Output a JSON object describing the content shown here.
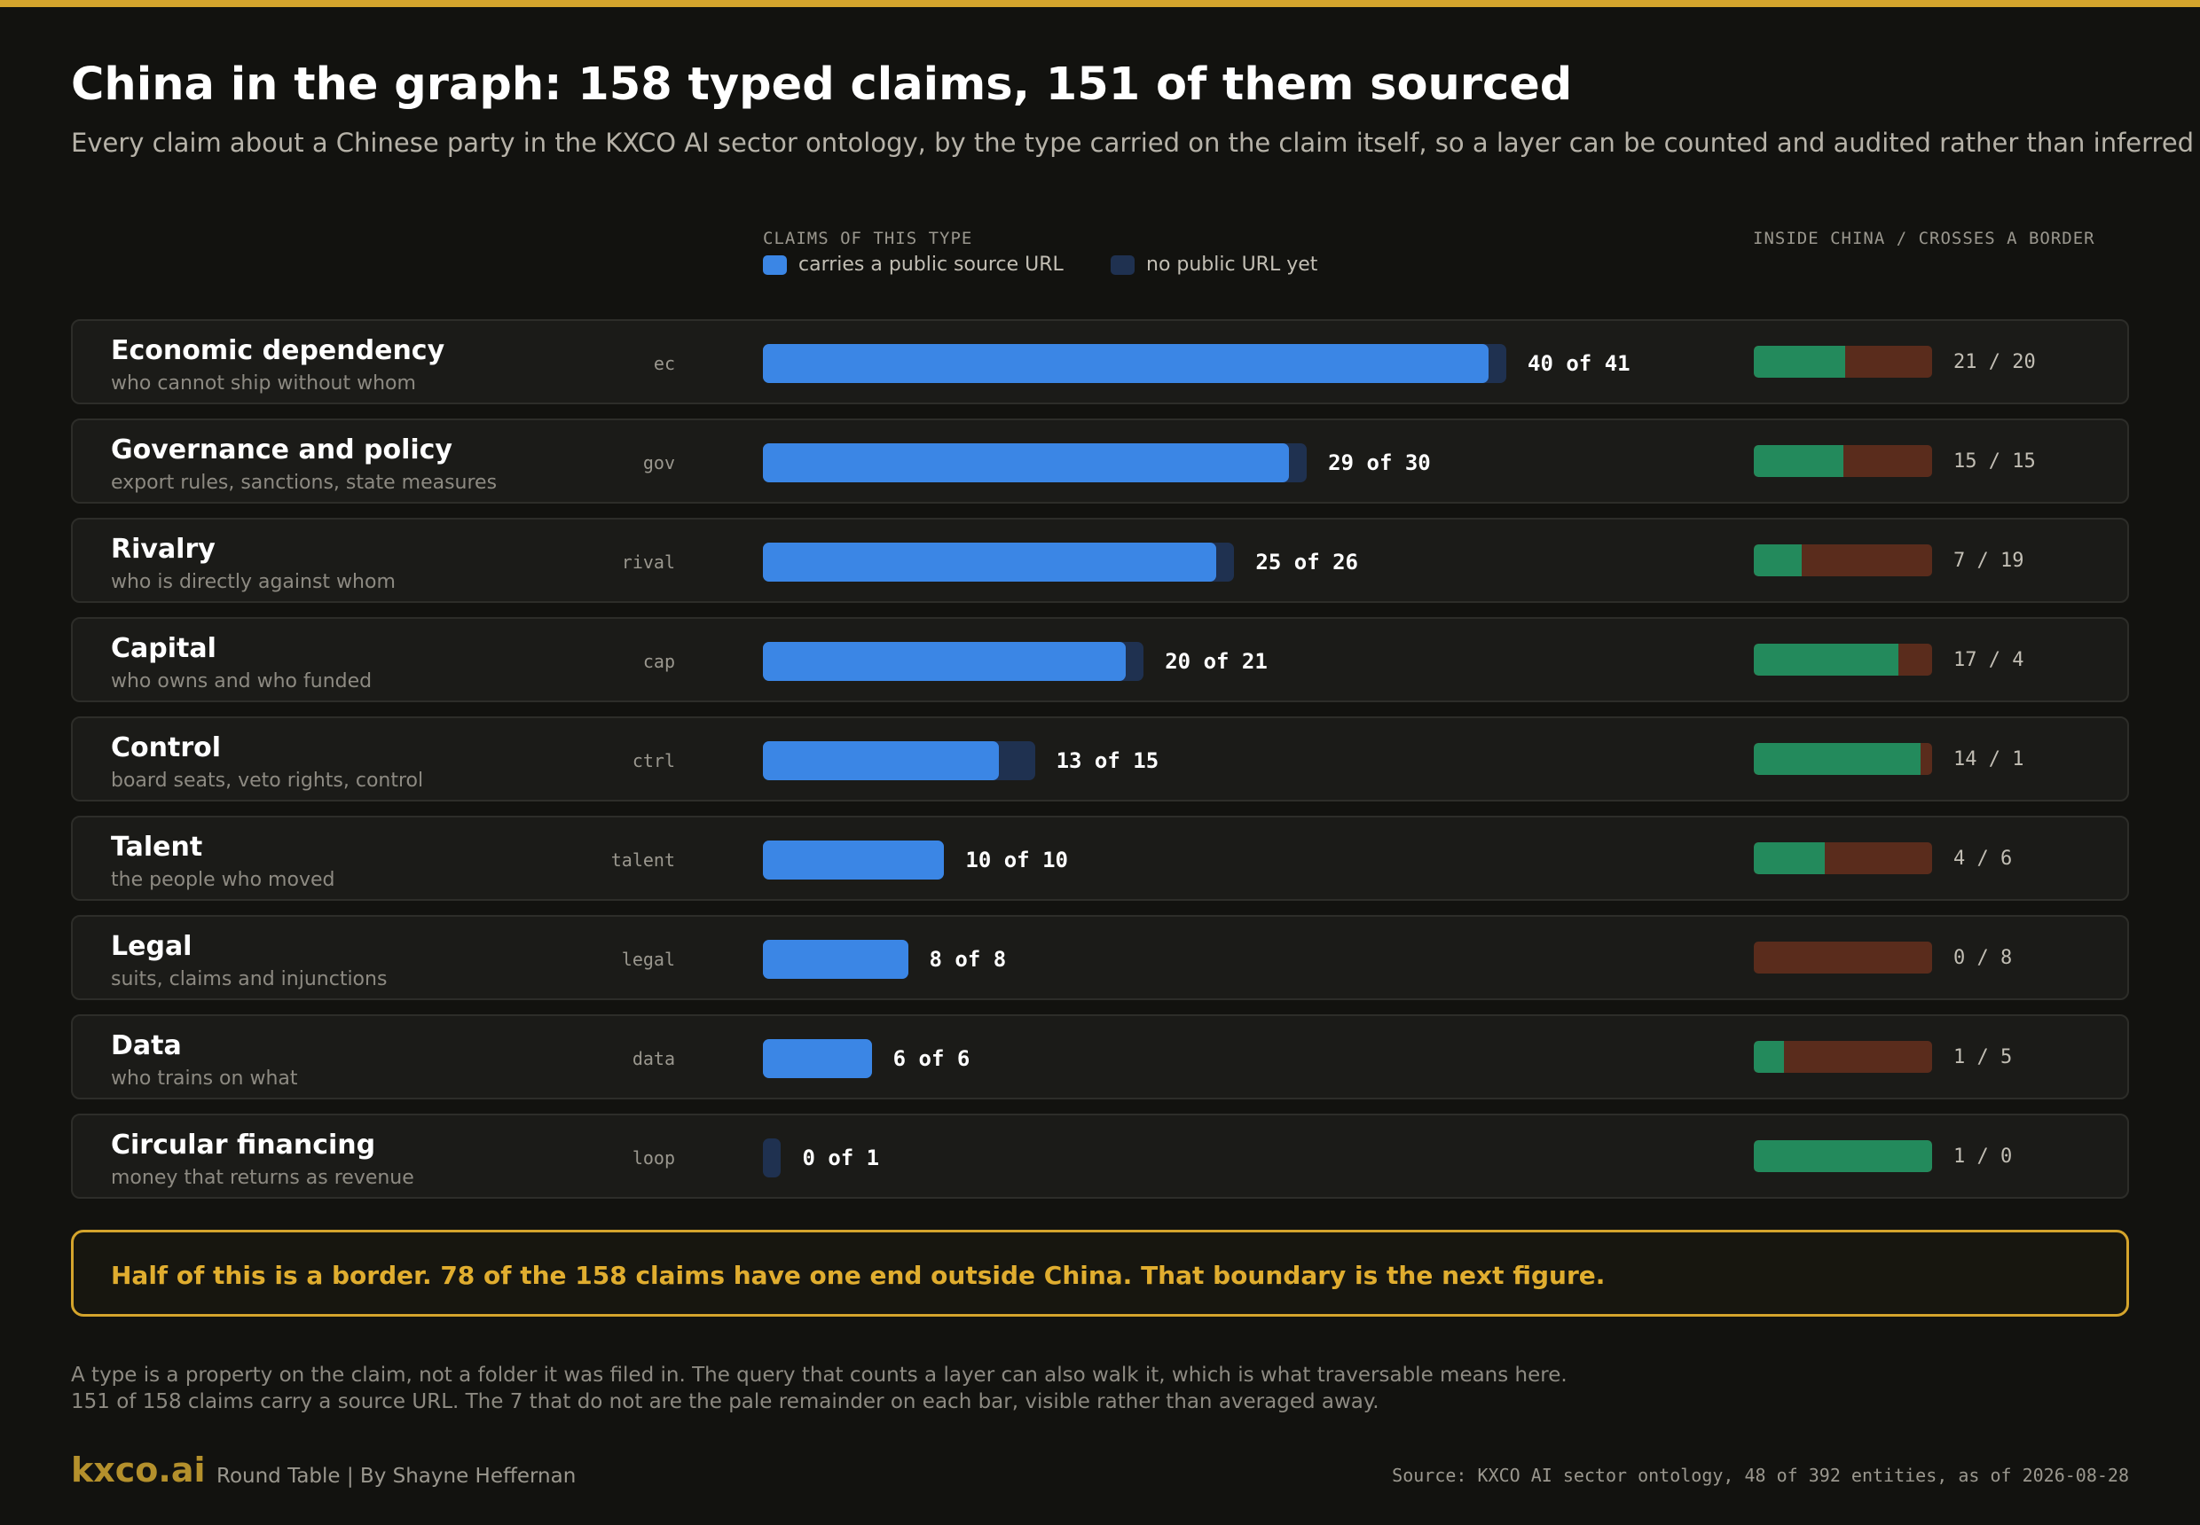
{
  "title": "China in the graph: 158 typed claims, 151 of them sourced",
  "subtitle": "Every claim about a Chinese party in the KXCO AI sector ontology, by the type carried on the claim itself, so a layer can be counted and audited rather than inferred",
  "legend": {
    "heading": "CLAIMS OF THIS TYPE",
    "sourced_label": "carries a public source URL",
    "unsourced_label": "no public URL yet",
    "border_heading": "INSIDE CHINA / CROSSES A BORDER"
  },
  "colors": {
    "accent": "#d4a42c",
    "sourced": "#3b86e5",
    "unsourced": "#1f3150",
    "inside_china": "#238a5c",
    "crosses_border": "#5a2c1c"
  },
  "chart_data": {
    "type": "bar",
    "orientation": "horizontal",
    "categories": [
      "Economic dependency",
      "Governance and policy",
      "Rivalry",
      "Capital",
      "Control",
      "Talent",
      "Legal",
      "Data",
      "Circular financing"
    ],
    "series": [
      {
        "name": "carries a public source URL",
        "values": [
          40,
          29,
          25,
          20,
          13,
          10,
          8,
          6,
          0
        ]
      },
      {
        "name": "no public URL yet",
        "values": [
          1,
          1,
          1,
          1,
          2,
          0,
          0,
          0,
          1
        ]
      }
    ],
    "rows": [
      {
        "name": "Economic dependency",
        "desc": "who cannot ship without whom",
        "code": "ec",
        "sourced": 40,
        "total": 41,
        "count_label": "40 of 41",
        "inside": 21,
        "crosses": 20,
        "split_label": "21 / 20"
      },
      {
        "name": "Governance and policy",
        "desc": "export rules, sanctions, state measures",
        "code": "gov",
        "sourced": 29,
        "total": 30,
        "count_label": "29 of 30",
        "inside": 15,
        "crosses": 15,
        "split_label": "15 / 15"
      },
      {
        "name": "Rivalry",
        "desc": "who is directly against whom",
        "code": "rival",
        "sourced": 25,
        "total": 26,
        "count_label": "25 of 26",
        "inside": 7,
        "crosses": 19,
        "split_label": "7 / 19"
      },
      {
        "name": "Capital",
        "desc": "who owns and who funded",
        "code": "cap",
        "sourced": 20,
        "total": 21,
        "count_label": "20 of 21",
        "inside": 17,
        "crosses": 4,
        "split_label": "17 / 4"
      },
      {
        "name": "Control",
        "desc": "board seats, veto rights, control",
        "code": "ctrl",
        "sourced": 13,
        "total": 15,
        "count_label": "13 of 15",
        "inside": 14,
        "crosses": 1,
        "split_label": "14 / 1"
      },
      {
        "name": "Talent",
        "desc": "the people who moved",
        "code": "talent",
        "sourced": 10,
        "total": 10,
        "count_label": "10 of 10",
        "inside": 4,
        "crosses": 6,
        "split_label": "4 / 6"
      },
      {
        "name": "Legal",
        "desc": "suits, claims and injunctions",
        "code": "legal",
        "sourced": 8,
        "total": 8,
        "count_label": "8 of 8",
        "inside": 0,
        "crosses": 8,
        "split_label": "0 / 8"
      },
      {
        "name": "Data",
        "desc": "who trains on what",
        "code": "data",
        "sourced": 6,
        "total": 6,
        "count_label": "6 of 6",
        "inside": 1,
        "crosses": 5,
        "split_label": "1 / 5"
      },
      {
        "name": "Circular financing",
        "desc": "money that returns as revenue",
        "code": "loop",
        "sourced": 0,
        "total": 1,
        "count_label": "0 of 1",
        "inside": 1,
        "crosses": 0,
        "split_label": "1 / 0"
      }
    ]
  },
  "callout": "Half of this is a border. 78 of the 158 claims have one end outside China. That boundary is the next figure.",
  "notes": [
    "A type is a property on the claim, not a folder it was filed in. The query that counts a layer can also walk it, which is what traversable means here.",
    "151 of 158 claims carry a source URL. The 7 that do not are the pale remainder on each bar, visible rather than averaged away."
  ],
  "footer": {
    "brand": "kxco.ai",
    "byline": "Round Table | By Shayne Heffernan",
    "source": "Source: KXCO AI sector ontology, 48 of 392 entities, as of 2026-08-28"
  }
}
